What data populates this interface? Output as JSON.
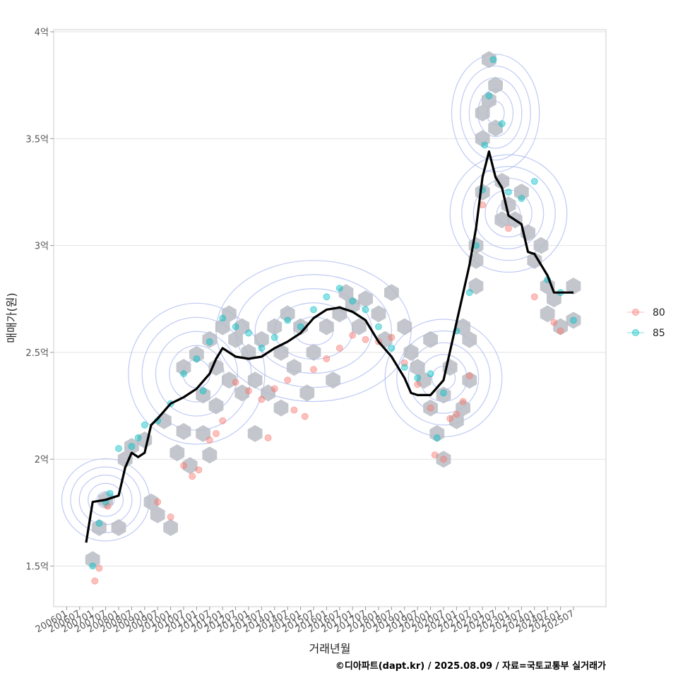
{
  "chart_data": {
    "type": "scatter",
    "xlabel": "거래년월",
    "ylabel": "매매가(원)",
    "caption": "©디아파트(dapt.kr) / 2025.08.09 / 자료=국토교통부 실거래가",
    "x_ticks": [
      "200601",
      "200607",
      "200701",
      "200707",
      "200801",
      "200807",
      "200901",
      "200907",
      "201001",
      "201007",
      "201101",
      "201107",
      "201201",
      "201207",
      "201301",
      "201307",
      "201401",
      "201407",
      "201501",
      "201507",
      "201601",
      "201607",
      "201701",
      "201707",
      "201801",
      "201807",
      "201901",
      "201907",
      "202001",
      "202007",
      "202101",
      "202107",
      "202201",
      "202207",
      "202301",
      "202307",
      "202401",
      "202407",
      "202501",
      "202507"
    ],
    "y_ticks": [
      {
        "value": 1.5,
        "label": "1.5억"
      },
      {
        "value": 2.0,
        "label": "2억"
      },
      {
        "value": 2.5,
        "label": "2.5억"
      },
      {
        "value": 3.0,
        "label": "3억"
      },
      {
        "value": 3.5,
        "label": "3.5억"
      },
      {
        "value": 4.0,
        "label": "4억"
      }
    ],
    "xlim": [
      "2005-07",
      "2026-10"
    ],
    "ylim": [
      1.31,
      4.01
    ],
    "grid": true,
    "legend_position": "right",
    "series": [
      {
        "name": "80",
        "color": "#F8766D",
        "points": [
          [
            "2007-02",
            1.43
          ],
          [
            "2007-04",
            1.49
          ],
          [
            "2007-08",
            1.78
          ],
          [
            "2009-07",
            1.8
          ],
          [
            "2010-01",
            1.73
          ],
          [
            "2010-07",
            1.97
          ],
          [
            "2010-11",
            1.92
          ],
          [
            "2011-02",
            1.95
          ],
          [
            "2011-07",
            2.09
          ],
          [
            "2011-10",
            2.12
          ],
          [
            "2012-01",
            2.18
          ],
          [
            "2012-07",
            2.36
          ],
          [
            "2013-01",
            2.32
          ],
          [
            "2013-07",
            2.28
          ],
          [
            "2013-10",
            2.1
          ],
          [
            "2014-01",
            2.33
          ],
          [
            "2014-07",
            2.37
          ],
          [
            "2014-10",
            2.23
          ],
          [
            "2015-03",
            2.2
          ],
          [
            "2015-07",
            2.42
          ],
          [
            "2016-01",
            2.47
          ],
          [
            "2016-07",
            2.52
          ],
          [
            "2017-01",
            2.58
          ],
          [
            "2017-07",
            2.56
          ],
          [
            "2018-01",
            2.55
          ],
          [
            "2018-07",
            2.57
          ],
          [
            "2019-01",
            2.45
          ],
          [
            "2019-07",
            2.35
          ],
          [
            "2020-01",
            2.24
          ],
          [
            "2020-03",
            2.02
          ],
          [
            "2020-07",
            2.0
          ],
          [
            "2020-10",
            2.19
          ],
          [
            "2021-01",
            2.21
          ],
          [
            "2021-04",
            2.27
          ],
          [
            "2021-07",
            2.39
          ],
          [
            "2022-01",
            3.19
          ],
          [
            "2023-01",
            3.08
          ],
          [
            "2024-01",
            2.76
          ],
          [
            "2024-10",
            2.64
          ],
          [
            "2025-01",
            2.6
          ]
        ]
      },
      {
        "name": "85",
        "color": "#00BFC4",
        "points": [
          [
            "2007-01",
            1.5
          ],
          [
            "2007-04",
            1.7
          ],
          [
            "2007-07",
            1.8
          ],
          [
            "2007-09",
            1.84
          ],
          [
            "2008-01",
            2.05
          ],
          [
            "2008-07",
            2.06
          ],
          [
            "2008-10",
            2.1
          ],
          [
            "2009-01",
            2.16
          ],
          [
            "2009-07",
            2.18
          ],
          [
            "2010-01",
            2.26
          ],
          [
            "2010-07",
            2.4
          ],
          [
            "2011-01",
            2.47
          ],
          [
            "2011-04",
            2.32
          ],
          [
            "2011-07",
            2.55
          ],
          [
            "2012-01",
            2.66
          ],
          [
            "2012-07",
            2.62
          ],
          [
            "2013-01",
            2.59
          ],
          [
            "2013-07",
            2.52
          ],
          [
            "2014-01",
            2.57
          ],
          [
            "2014-07",
            2.65
          ],
          [
            "2015-01",
            2.62
          ],
          [
            "2015-07",
            2.7
          ],
          [
            "2016-01",
            2.76
          ],
          [
            "2016-07",
            2.8
          ],
          [
            "2017-01",
            2.74
          ],
          [
            "2017-07",
            2.7
          ],
          [
            "2018-01",
            2.62
          ],
          [
            "2018-07",
            2.52
          ],
          [
            "2019-01",
            2.43
          ],
          [
            "2019-07",
            2.38
          ],
          [
            "2020-01",
            2.4
          ],
          [
            "2020-04",
            2.1
          ],
          [
            "2020-07",
            2.31
          ],
          [
            "2021-01",
            2.6
          ],
          [
            "2021-07",
            2.78
          ],
          [
            "2021-10",
            3.0
          ],
          [
            "2022-01",
            3.26
          ],
          [
            "2022-02",
            3.47
          ],
          [
            "2022-04",
            3.7
          ],
          [
            "2022-06",
            3.87
          ],
          [
            "2022-10",
            3.57
          ],
          [
            "2023-01",
            3.25
          ],
          [
            "2023-07",
            3.22
          ],
          [
            "2024-01",
            3.3
          ],
          [
            "2024-07",
            2.84
          ],
          [
            "2025-01",
            2.78
          ],
          [
            "2025-07",
            2.65
          ]
        ]
      }
    ],
    "trend_line": {
      "color": "#000000",
      "points": [
        [
          "2006-10",
          1.61
        ],
        [
          "2007-01",
          1.8
        ],
        [
          "2007-07",
          1.81
        ],
        [
          "2008-01",
          1.83
        ],
        [
          "2008-04",
          1.96
        ],
        [
          "2008-07",
          2.03
        ],
        [
          "2008-10",
          2.01
        ],
        [
          "2009-01",
          2.03
        ],
        [
          "2009-04",
          2.16
        ],
        [
          "2009-07",
          2.19
        ],
        [
          "2010-01",
          2.26
        ],
        [
          "2010-07",
          2.29
        ],
        [
          "2011-01",
          2.33
        ],
        [
          "2011-07",
          2.4
        ],
        [
          "2011-10",
          2.47
        ],
        [
          "2012-01",
          2.52
        ],
        [
          "2012-07",
          2.48
        ],
        [
          "2013-01",
          2.47
        ],
        [
          "2013-07",
          2.48
        ],
        [
          "2014-01",
          2.52
        ],
        [
          "2014-07",
          2.55
        ],
        [
          "2015-01",
          2.59
        ],
        [
          "2015-07",
          2.66
        ],
        [
          "2016-01",
          2.7
        ],
        [
          "2016-07",
          2.71
        ],
        [
          "2017-01",
          2.69
        ],
        [
          "2017-07",
          2.65
        ],
        [
          "2018-01",
          2.55
        ],
        [
          "2018-07",
          2.48
        ],
        [
          "2019-01",
          2.38
        ],
        [
          "2019-04",
          2.31
        ],
        [
          "2019-07",
          2.3
        ],
        [
          "2020-01",
          2.3
        ],
        [
          "2020-07",
          2.37
        ],
        [
          "2021-01",
          2.64
        ],
        [
          "2021-07",
          2.91
        ],
        [
          "2021-10",
          3.08
        ],
        [
          "2022-01",
          3.32
        ],
        [
          "2022-04",
          3.44
        ],
        [
          "2022-07",
          3.32
        ],
        [
          "2022-10",
          3.27
        ],
        [
          "2023-01",
          3.14
        ],
        [
          "2023-07",
          3.1
        ],
        [
          "2023-10",
          2.97
        ],
        [
          "2024-01",
          2.96
        ],
        [
          "2024-07",
          2.86
        ],
        [
          "2024-10",
          2.78
        ],
        [
          "2025-07",
          2.78
        ]
      ]
    },
    "hexbins": [
      [
        "2007-01",
        1.53
      ],
      [
        "2007-04",
        1.68
      ],
      [
        "2007-07",
        1.81
      ],
      [
        "2008-01",
        1.68
      ],
      [
        "2008-04",
        2.0
      ],
      [
        "2008-07",
        2.06
      ],
      [
        "2009-01",
        2.09
      ],
      [
        "2009-04",
        1.8
      ],
      [
        "2009-07",
        1.74
      ],
      [
        "2009-10",
        2.18
      ],
      [
        "2010-01",
        1.68
      ],
      [
        "2010-04",
        2.03
      ],
      [
        "2010-07",
        2.43
      ],
      [
        "2010-07",
        2.13
      ],
      [
        "2010-10",
        1.97
      ],
      [
        "2011-01",
        2.49
      ],
      [
        "2011-04",
        2.3
      ],
      [
        "2011-04",
        2.12
      ],
      [
        "2011-07",
        2.56
      ],
      [
        "2011-07",
        2.02
      ],
      [
        "2011-10",
        2.43
      ],
      [
        "2011-10",
        2.25
      ],
      [
        "2012-01",
        2.62
      ],
      [
        "2012-04",
        2.68
      ],
      [
        "2012-04",
        2.37
      ],
      [
        "2012-07",
        2.56
      ],
      [
        "2012-10",
        2.62
      ],
      [
        "2012-10",
        2.31
      ],
      [
        "2013-01",
        2.5
      ],
      [
        "2013-04",
        2.37
      ],
      [
        "2013-04",
        2.12
      ],
      [
        "2013-07",
        2.56
      ],
      [
        "2013-10",
        2.31
      ],
      [
        "2014-01",
        2.62
      ],
      [
        "2014-04",
        2.5
      ],
      [
        "2014-04",
        2.24
      ],
      [
        "2014-07",
        2.68
      ],
      [
        "2014-10",
        2.43
      ],
      [
        "2015-01",
        2.62
      ],
      [
        "2015-04",
        2.31
      ],
      [
        "2015-07",
        2.5
      ],
      [
        "2016-01",
        2.62
      ],
      [
        "2016-04",
        2.37
      ],
      [
        "2016-07",
        2.68
      ],
      [
        "2016-10",
        2.78
      ],
      [
        "2017-01",
        2.72
      ],
      [
        "2017-04",
        2.62
      ],
      [
        "2017-07",
        2.75
      ],
      [
        "2018-01",
        2.68
      ],
      [
        "2018-04",
        2.56
      ],
      [
        "2018-07",
        2.78
      ],
      [
        "2019-01",
        2.62
      ],
      [
        "2019-04",
        2.5
      ],
      [
        "2019-07",
        2.43
      ],
      [
        "2019-10",
        2.37
      ],
      [
        "2020-01",
        2.24
      ],
      [
        "2020-01",
        2.56
      ],
      [
        "2020-04",
        2.12
      ],
      [
        "2020-07",
        2.0
      ],
      [
        "2020-07",
        2.3
      ],
      [
        "2020-10",
        2.43
      ],
      [
        "2021-01",
        2.18
      ],
      [
        "2021-04",
        2.24
      ],
      [
        "2021-04",
        2.62
      ],
      [
        "2021-07",
        2.37
      ],
      [
        "2021-07",
        2.56
      ],
      [
        "2021-10",
        2.81
      ],
      [
        "2021-10",
        2.93
      ],
      [
        "2021-10",
        3.0
      ],
      [
        "2022-01",
        3.25
      ],
      [
        "2022-01",
        3.5
      ],
      [
        "2022-01",
        3.62
      ],
      [
        "2022-04",
        3.68
      ],
      [
        "2022-04",
        3.87
      ],
      [
        "2022-07",
        3.75
      ],
      [
        "2022-07",
        3.55
      ],
      [
        "2022-10",
        3.12
      ],
      [
        "2022-10",
        3.3
      ],
      [
        "2023-01",
        3.19
      ],
      [
        "2023-04",
        3.12
      ],
      [
        "2023-07",
        3.25
      ],
      [
        "2023-10",
        3.06
      ],
      [
        "2024-01",
        2.93
      ],
      [
        "2024-04",
        3.0
      ],
      [
        "2024-07",
        2.81
      ],
      [
        "2024-07",
        2.68
      ],
      [
        "2024-10",
        2.75
      ],
      [
        "2025-01",
        2.62
      ],
      [
        "2025-07",
        2.81
      ],
      [
        "2025-07",
        2.65
      ]
    ],
    "density_contours": [
      {
        "cx": "2007-07",
        "cy": 1.81,
        "rx_months": 9,
        "ry": 0.07
      },
      {
        "cx": "2011-01",
        "cy": 2.4,
        "rx_months": 14,
        "ry": 0.12
      },
      {
        "cx": "2015-07",
        "cy": 2.6,
        "rx_months": 20,
        "ry": 0.12
      },
      {
        "cx": "2020-07",
        "cy": 2.38,
        "rx_months": 12,
        "ry": 0.1
      },
      {
        "cx": "2023-01",
        "cy": 3.15,
        "rx_months": 12,
        "ry": 0.1
      },
      {
        "cx": "2022-07",
        "cy": 3.62,
        "rx_months": 9,
        "ry": 0.1
      }
    ]
  }
}
